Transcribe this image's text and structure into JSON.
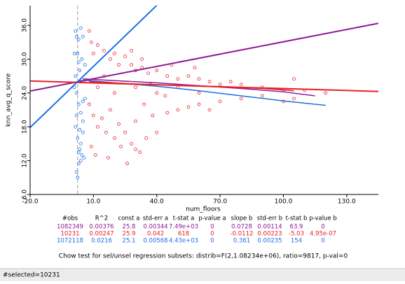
{
  "chart_data": {
    "type": "scatter",
    "x_label": "num_floors",
    "y_label": "knn_avg_q_score",
    "xlim": [
      -20,
      145
    ],
    "ylim": [
      6,
      39.5
    ],
    "xticks": [
      {
        "value": -20,
        "label": "-20.0"
      },
      {
        "value": 10,
        "label": "10.0"
      },
      {
        "value": 40,
        "label": "40.0"
      },
      {
        "value": 70,
        "label": "70.0"
      },
      {
        "value": 100,
        "label": "100.0"
      },
      {
        "value": 130,
        "label": "130.0"
      }
    ],
    "yticks": [
      {
        "value": 6,
        "label": "6.0"
      },
      {
        "value": 12,
        "label": "12.0"
      },
      {
        "value": 18,
        "label": "18.0"
      },
      {
        "value": 24,
        "label": "24.0"
      },
      {
        "value": 30,
        "label": "30.0"
      },
      {
        "value": 36,
        "label": "36.0"
      }
    ],
    "reference_line_x": 2.5,
    "series": [
      {
        "color": "#1f6fe3",
        "x": [
          1.5,
          2,
          3,
          4,
          5,
          2.5,
          4.5,
          3.5,
          1.5,
          5.5,
          2,
          3,
          4,
          5,
          1.5,
          2.5,
          3.5,
          4.5,
          5.5,
          3,
          2,
          2.5,
          4,
          5,
          1,
          6,
          6,
          3,
          4,
          2,
          5,
          3.5,
          1,
          4,
          3
        ],
        "values": [
          35,
          34,
          33.5,
          35.5,
          34,
          31,
          30,
          28,
          27,
          26,
          24,
          22,
          20.5,
          19,
          18,
          16,
          14,
          13,
          12.5,
          11.5,
          10,
          9,
          15,
          17,
          25,
          29,
          23,
          29.5,
          26,
          20,
          22.5,
          17.5,
          31,
          12,
          13.5
        ]
      },
      {
        "color": "#e8202a",
        "x": [
          8,
          9,
          10,
          12,
          15,
          18,
          20,
          22,
          25,
          28,
          30,
          33,
          36,
          40,
          45,
          50,
          55,
          60,
          65,
          70,
          75,
          80,
          90,
          100,
          105,
          8,
          10,
          12,
          14,
          16,
          18,
          20,
          22,
          25,
          28,
          30,
          32,
          35,
          38,
          40,
          45,
          50,
          55,
          60,
          65,
          70,
          80,
          90,
          100,
          105,
          110,
          120,
          26,
          30,
          9,
          12,
          15,
          20,
          30,
          40,
          50,
          60,
          9,
          11,
          17,
          23,
          34,
          44,
          33,
          28,
          47,
          58,
          37
        ],
        "values": [
          35,
          33,
          31,
          32.5,
          31.5,
          30,
          31,
          29,
          30.5,
          29,
          28,
          28.5,
          27.5,
          28,
          27,
          26.5,
          27,
          26.5,
          26,
          25.5,
          26,
          25.5,
          25,
          24.5,
          26.5,
          22,
          20,
          18,
          19.5,
          17,
          21,
          16,
          18.5,
          17,
          15,
          19,
          13.5,
          16,
          20,
          17,
          20.5,
          21,
          21.5,
          22,
          21,
          22.5,
          23,
          23.5,
          22.5,
          23,
          24.5,
          24,
          11.5,
          14,
          26,
          25,
          27,
          24,
          25,
          24,
          25,
          24,
          14.5,
          13,
          12.5,
          14.5,
          22,
          23.5,
          30,
          31.5,
          29,
          28.5,
          25.5
        ]
      }
    ],
    "smooth": [
      {
        "color": "#8e1a96",
        "x": [
          5,
          20,
          40,
          60,
          80,
          100,
          115
        ],
        "values": [
          26.5,
          26.2,
          25.8,
          25.3,
          24.8,
          24.2,
          23.5
        ]
      },
      {
        "color": "#1f6fe3",
        "x": [
          5,
          20,
          40,
          60,
          80,
          100,
          120
        ],
        "values": [
          26.3,
          25.8,
          25.2,
          24.4,
          23.5,
          22.6,
          21.8
        ]
      },
      {
        "color": "#e8202a",
        "x": [
          8,
          30,
          60,
          90,
          105
        ],
        "values": [
          26,
          25.6,
          25.2,
          24.8,
          24.4
        ]
      }
    ],
    "regression_table": {
      "columns": [
        "#obs",
        "R^2",
        "const a",
        "std-err a",
        "t-stat a",
        "p-value a",
        "slope b",
        "std-err b",
        "t-stat b",
        "p-value b"
      ],
      "rows": [
        {
          "color": "#8e1a96",
          "cells": [
            1082349,
            0.00376,
            25.8,
            0.00344,
            "7.49e+03",
            0,
            0.0728,
            0.00114,
            63.9,
            0
          ]
        },
        {
          "color": "#e8202a",
          "cells": [
            10231,
            0.00247,
            25.9,
            0.042,
            618,
            0,
            -0.0112,
            0.00223,
            -5.03,
            "4.95e-07"
          ]
        },
        {
          "color": "#1f6fe3",
          "cells": [
            1072118,
            0.0216,
            25.1,
            0.00568,
            "4.43e+03",
            0,
            0.361,
            0.00235,
            154,
            0
          ]
        }
      ]
    },
    "chow_test": "Chow test for sel/unsel regression subsets: distrib=F(2,1.08234e+06), ratio=9817, p-val=0"
  },
  "status": "#selected=10231"
}
